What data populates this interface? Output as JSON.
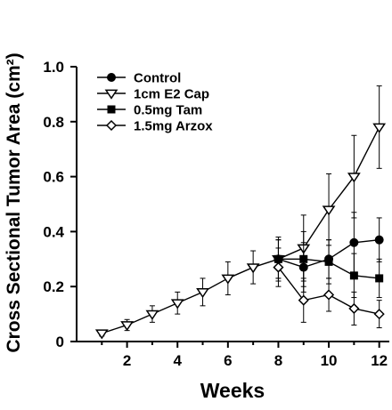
{
  "chart_data": {
    "type": "line",
    "title": "",
    "xlabel": "Weeks",
    "ylabel": "Cross Sectional Tumor Area (cm²)",
    "xlim": [
      0,
      12.4
    ],
    "ylim": [
      0,
      1.0
    ],
    "xticks": [
      2,
      4,
      6,
      8,
      10,
      12
    ],
    "yticks": [
      0,
      0.2,
      0.4,
      0.6,
      0.8,
      1.0
    ],
    "xtick_labels": [
      "2",
      "4",
      "6",
      "8",
      "10",
      "12"
    ],
    "ytick_labels": [
      "0",
      "0.2",
      "0.4",
      "0.6",
      "0.8",
      "1.0"
    ],
    "grid": false,
    "legend_position": "top-left",
    "colors": {
      "line": "#000000",
      "background": "#ffffff"
    },
    "series": [
      {
        "name": "Control",
        "marker": "filled-circle",
        "x": [
          8,
          9,
          10,
          11,
          12
        ],
        "y": [
          0.3,
          0.27,
          0.3,
          0.36,
          0.37
        ],
        "err": [
          0.08,
          0.09,
          0.07,
          0.11,
          0.08
        ]
      },
      {
        "name": "1cm E2 Cap",
        "marker": "open-triangle-down",
        "x": [
          1,
          2,
          3,
          4,
          5,
          6,
          7,
          8,
          9,
          10,
          11,
          12
        ],
        "y": [
          0.03,
          0.06,
          0.1,
          0.14,
          0.18,
          0.23,
          0.27,
          0.3,
          0.34,
          0.48,
          0.6,
          0.78
        ],
        "err": [
          0.01,
          0.02,
          0.03,
          0.04,
          0.05,
          0.06,
          0.06,
          0.07,
          0.12,
          0.13,
          0.15,
          0.15
        ]
      },
      {
        "name": "0.5mg Tam",
        "marker": "filled-square",
        "x": [
          8,
          9,
          10,
          11,
          12
        ],
        "y": [
          0.3,
          0.3,
          0.29,
          0.24,
          0.23
        ],
        "err": [
          0.07,
          0.1,
          0.08,
          0.08,
          0.07
        ]
      },
      {
        "name": "1.5mg Arzox",
        "marker": "open-diamond",
        "x": [
          8,
          9,
          10,
          11,
          12
        ],
        "y": [
          0.27,
          0.15,
          0.17,
          0.12,
          0.1
        ],
        "err": [
          0.07,
          0.08,
          0.06,
          0.06,
          0.05
        ]
      }
    ]
  }
}
